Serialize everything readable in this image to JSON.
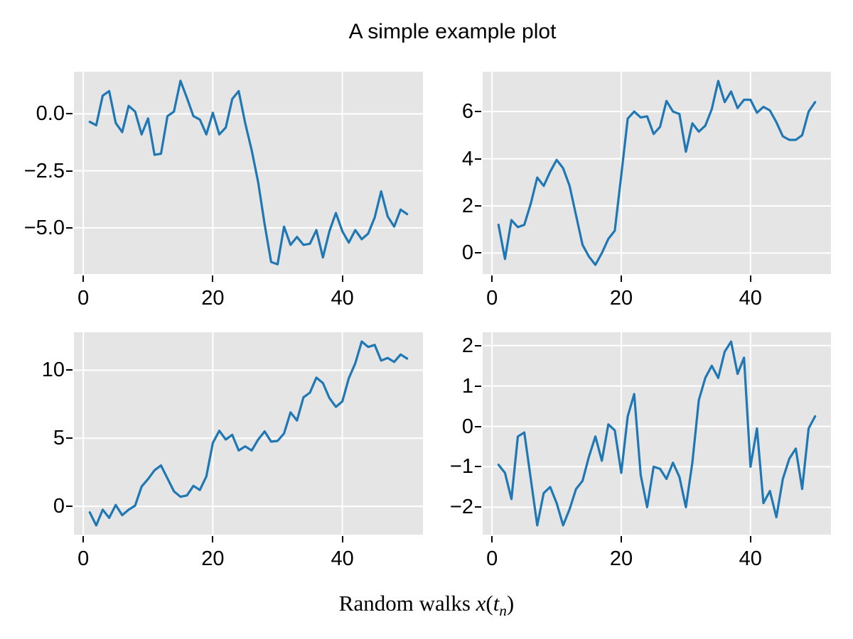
{
  "figure": {
    "title": "A simple example plot",
    "xlabel": {
      "prefix": "Random walks ",
      "var_x": "x",
      "open_paren": "(",
      "var_t": "t",
      "subscript": "n",
      "close_paren": ")"
    }
  },
  "colors": {
    "line": "#1f77b4",
    "plot_bg": "#e5e5e5",
    "grid": "#ffffff",
    "tick": "#000000",
    "text": "#000000",
    "page_bg": "#ffffff"
  },
  "chart_data": [
    {
      "id": "top-left",
      "type": "line",
      "x": [
        1,
        2,
        3,
        4,
        5,
        6,
        7,
        8,
        9,
        10,
        11,
        12,
        13,
        14,
        15,
        16,
        17,
        18,
        19,
        20,
        21,
        22,
        23,
        24,
        25,
        26,
        27,
        28,
        29,
        30,
        31,
        32,
        33,
        34,
        35,
        36,
        37,
        38,
        39,
        40,
        41,
        42,
        43,
        44,
        45,
        46,
        47,
        48,
        49,
        50
      ],
      "values": [
        -0.35,
        -0.5,
        0.8,
        1.0,
        -0.4,
        -0.8,
        0.35,
        0.1,
        -0.9,
        -0.2,
        -1.8,
        -1.75,
        -0.1,
        0.1,
        1.45,
        0.7,
        -0.1,
        -0.25,
        -0.9,
        0.05,
        -0.9,
        -0.6,
        0.65,
        1.0,
        -0.4,
        -1.6,
        -3.0,
        -4.85,
        -6.5,
        -6.6,
        -4.95,
        -5.75,
        -5.4,
        -5.75,
        -5.7,
        -5.1,
        -6.3,
        -5.15,
        -4.35,
        -5.15,
        -5.65,
        -5.1,
        -5.5,
        -5.25,
        -4.55,
        -3.4,
        -4.5,
        -4.95,
        -4.2,
        -4.4
      ],
      "xlim": [
        -1.45,
        52.45
      ],
      "ylim": [
        -7.03,
        1.85
      ],
      "xticks": [
        0,
        20,
        40
      ],
      "xtick_labels": [
        "0",
        "20",
        "40"
      ],
      "yticks": [
        0.0,
        -2.5,
        -5.0
      ],
      "ytick_labels": [
        "0.0",
        "−2.5",
        "−5.0"
      ],
      "grid": true
    },
    {
      "id": "top-right",
      "type": "line",
      "x": [
        1,
        2,
        3,
        4,
        5,
        6,
        7,
        8,
        9,
        10,
        11,
        12,
        13,
        14,
        15,
        16,
        17,
        18,
        19,
        20,
        21,
        22,
        23,
        24,
        25,
        26,
        27,
        28,
        29,
        30,
        31,
        32,
        33,
        34,
        35,
        36,
        37,
        38,
        39,
        40,
        41,
        42,
        43,
        44,
        45,
        46,
        47,
        48,
        49,
        50
      ],
      "values": [
        1.2,
        -0.25,
        1.4,
        1.1,
        1.2,
        2.1,
        3.2,
        2.85,
        3.45,
        3.95,
        3.6,
        2.85,
        1.6,
        0.35,
        -0.15,
        -0.5,
        0.0,
        0.6,
        0.95,
        3.3,
        5.7,
        6.0,
        5.75,
        5.8,
        5.05,
        5.35,
        6.45,
        6.0,
        5.9,
        4.3,
        5.5,
        5.15,
        5.4,
        6.1,
        7.3,
        6.4,
        6.85,
        6.15,
        6.5,
        6.5,
        5.95,
        6.2,
        6.05,
        5.55,
        4.95,
        4.8,
        4.8,
        5.0,
        6.0,
        6.4
      ],
      "xlim": [
        -1.45,
        52.45
      ],
      "ylim": [
        -0.89,
        7.69
      ],
      "xticks": [
        0,
        20,
        40
      ],
      "xtick_labels": [
        "0",
        "20",
        "40"
      ],
      "yticks": [
        6,
        4,
        2,
        0
      ],
      "ytick_labels": [
        "6",
        "4",
        "2",
        "0"
      ],
      "grid": true
    },
    {
      "id": "bottom-left",
      "type": "line",
      "x": [
        1,
        2,
        3,
        4,
        5,
        6,
        7,
        8,
        9,
        10,
        11,
        12,
        13,
        14,
        15,
        16,
        17,
        18,
        19,
        20,
        21,
        22,
        23,
        24,
        25,
        26,
        27,
        28,
        29,
        30,
        31,
        32,
        33,
        34,
        35,
        36,
        37,
        38,
        39,
        40,
        41,
        42,
        43,
        44,
        45,
        46,
        47,
        48,
        49,
        50
      ],
      "values": [
        -0.45,
        -1.4,
        -0.25,
        -0.85,
        0.1,
        -0.65,
        -0.25,
        0.05,
        1.45,
        2.0,
        2.65,
        3.0,
        2.05,
        1.1,
        0.7,
        0.8,
        1.5,
        1.2,
        2.2,
        4.65,
        5.55,
        4.9,
        5.25,
        4.1,
        4.4,
        4.1,
        4.9,
        5.5,
        4.75,
        4.8,
        5.35,
        6.9,
        6.3,
        8.0,
        8.35,
        9.45,
        9.05,
        7.95,
        7.3,
        7.7,
        9.4,
        10.5,
        12.1,
        11.7,
        11.85,
        10.7,
        10.9,
        10.6,
        11.15,
        10.85
      ],
      "xlim": [
        -1.45,
        52.45
      ],
      "ylim": [
        -2.08,
        12.78
      ],
      "xticks": [
        0,
        20,
        40
      ],
      "xtick_labels": [
        "0",
        "20",
        "40"
      ],
      "yticks": [
        10,
        5,
        0
      ],
      "ytick_labels": [
        "10",
        "5",
        "0"
      ],
      "grid": true
    },
    {
      "id": "bottom-right",
      "type": "line",
      "x": [
        1,
        2,
        3,
        4,
        5,
        6,
        7,
        8,
        9,
        10,
        11,
        12,
        13,
        14,
        15,
        16,
        17,
        18,
        19,
        20,
        21,
        22,
        23,
        24,
        25,
        26,
        27,
        28,
        29,
        30,
        31,
        32,
        33,
        34,
        35,
        36,
        37,
        38,
        39,
        40,
        41,
        42,
        43,
        44,
        45,
        46,
        47,
        48,
        49,
        50
      ],
      "values": [
        -0.95,
        -1.15,
        -1.8,
        -0.25,
        -0.15,
        -1.3,
        -2.45,
        -1.65,
        -1.5,
        -1.9,
        -2.45,
        -2.05,
        -1.55,
        -1.35,
        -0.75,
        -0.25,
        -0.85,
        0.05,
        -0.1,
        -1.15,
        0.25,
        0.8,
        -1.2,
        -2.0,
        -1.0,
        -1.05,
        -1.3,
        -0.9,
        -1.25,
        -2.0,
        -0.9,
        0.65,
        1.2,
        1.5,
        1.2,
        1.85,
        2.1,
        1.3,
        1.7,
        -1.0,
        -0.05,
        -1.9,
        -1.6,
        -2.25,
        -1.3,
        -0.8,
        -0.55,
        -1.55,
        -0.05,
        0.25
      ],
      "xlim": [
        -1.45,
        52.45
      ],
      "ylim": [
        -2.68,
        2.33
      ],
      "xticks": [
        0,
        20,
        40
      ],
      "xtick_labels": [
        "0",
        "20",
        "40"
      ],
      "yticks": [
        2,
        1,
        0,
        -1,
        -2
      ],
      "ytick_labels": [
        "2",
        "1",
        "0",
        "−1",
        "−2"
      ],
      "grid": true
    }
  ]
}
